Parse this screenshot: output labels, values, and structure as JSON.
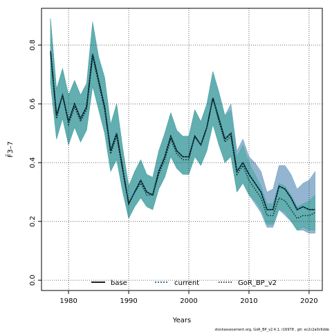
{
  "chart_data": {
    "type": "line",
    "xlabel": "Years",
    "ylabel": "F̄3–7",
    "xlim": [
      1975.5,
      2022.2
    ],
    "ylim": [
      -0.035,
      0.925
    ],
    "xticks": [
      "1980",
      "1990",
      "2000",
      "2010",
      "2020"
    ],
    "yticks": [
      "0.0",
      "0.2",
      "0.4",
      "0.6",
      "0.8"
    ],
    "grid": true,
    "legend_position": "bottom",
    "footer": "stockassessment.org, GoR_BP_v2.4.1, r16978 , git: ec2c2a0c6dde",
    "x": [
      1977,
      1978,
      1979,
      1980,
      1981,
      1982,
      1983,
      1984,
      1985,
      1986,
      1987,
      1988,
      1989,
      1990,
      1991,
      1992,
      1993,
      1994,
      1995,
      1996,
      1997,
      1998,
      1999,
      2000,
      2001,
      2002,
      2003,
      2004,
      2005,
      2006,
      2007,
      2008,
      2009,
      2010,
      2011,
      2012,
      2013,
      2014,
      2015,
      2016,
      2017,
      2018,
      2019,
      2020,
      2021
    ],
    "series": [
      {
        "name": "base",
        "color": "#000000",
        "dash": "solid",
        "band_color": "#8aa3c0",
        "values": [
          0.78,
          0.56,
          0.63,
          0.54,
          0.6,
          0.55,
          0.59,
          0.77,
          0.68,
          0.59,
          0.44,
          0.5,
          0.38,
          0.26,
          0.3,
          0.34,
          0.3,
          0.29,
          0.37,
          0.42,
          0.49,
          0.44,
          0.42,
          0.42,
          0.49,
          0.46,
          0.52,
          0.62,
          0.55,
          0.48,
          0.5,
          0.37,
          0.4,
          0.36,
          0.33,
          0.3,
          0.24,
          0.24,
          0.32,
          0.31,
          0.28,
          0.24,
          0.25,
          0.24,
          0.24
        ],
        "lower": [
          0.67,
          0.48,
          0.55,
          0.46,
          0.52,
          0.47,
          0.51,
          0.66,
          0.58,
          0.5,
          0.37,
          0.41,
          0.3,
          0.21,
          0.25,
          0.28,
          0.25,
          0.24,
          0.31,
          0.35,
          0.42,
          0.38,
          0.36,
          0.36,
          0.42,
          0.39,
          0.44,
          0.53,
          0.46,
          0.4,
          0.42,
          0.3,
          0.33,
          0.29,
          0.26,
          0.23,
          0.18,
          0.18,
          0.24,
          0.22,
          0.2,
          0.17,
          0.17,
          0.16,
          0.16
        ],
        "upper": [
          0.89,
          0.65,
          0.72,
          0.63,
          0.68,
          0.63,
          0.67,
          0.88,
          0.76,
          0.69,
          0.53,
          0.6,
          0.45,
          0.32,
          0.37,
          0.41,
          0.36,
          0.35,
          0.44,
          0.5,
          0.57,
          0.51,
          0.49,
          0.49,
          0.58,
          0.54,
          0.6,
          0.71,
          0.64,
          0.56,
          0.6,
          0.44,
          0.48,
          0.42,
          0.4,
          0.37,
          0.3,
          0.31,
          0.39,
          0.39,
          0.36,
          0.31,
          0.33,
          0.34,
          0.37
        ]
      },
      {
        "name": "current",
        "color": "#1a5a8a",
        "dash": "2,2",
        "band_color": "#6fa3c8",
        "values": [
          0.78,
          0.56,
          0.63,
          0.54,
          0.6,
          0.55,
          0.59,
          0.77,
          0.68,
          0.59,
          0.44,
          0.5,
          0.38,
          0.26,
          0.3,
          0.34,
          0.3,
          0.29,
          0.37,
          0.42,
          0.49,
          0.44,
          0.42,
          0.42,
          0.49,
          0.46,
          0.52,
          0.62,
          0.55,
          0.48,
          0.5,
          0.37,
          0.4,
          0.36,
          0.33,
          0.3,
          0.24,
          0.24,
          0.32,
          0.31,
          0.28,
          0.24,
          0.25,
          0.24,
          0.24
        ],
        "lower": [
          0.67,
          0.48,
          0.55,
          0.46,
          0.52,
          0.47,
          0.51,
          0.66,
          0.58,
          0.5,
          0.37,
          0.41,
          0.3,
          0.21,
          0.25,
          0.28,
          0.25,
          0.24,
          0.31,
          0.35,
          0.42,
          0.38,
          0.36,
          0.36,
          0.42,
          0.39,
          0.44,
          0.53,
          0.46,
          0.4,
          0.42,
          0.3,
          0.33,
          0.29,
          0.26,
          0.23,
          0.18,
          0.18,
          0.24,
          0.22,
          0.2,
          0.17,
          0.17,
          0.16,
          0.16
        ],
        "upper": [
          0.89,
          0.65,
          0.72,
          0.63,
          0.68,
          0.63,
          0.67,
          0.88,
          0.76,
          0.69,
          0.53,
          0.6,
          0.45,
          0.32,
          0.37,
          0.41,
          0.36,
          0.35,
          0.44,
          0.5,
          0.57,
          0.51,
          0.49,
          0.49,
          0.58,
          0.54,
          0.6,
          0.71,
          0.64,
          0.56,
          0.6,
          0.44,
          0.48,
          0.42,
          0.4,
          0.37,
          0.3,
          0.31,
          0.39,
          0.39,
          0.36,
          0.31,
          0.33,
          0.34,
          0.37
        ]
      },
      {
        "name": "GoR_BP_v2",
        "color": "#0a2f20",
        "dash": "1.5,2",
        "band_color": "#3aa898",
        "values": [
          0.77,
          0.55,
          0.63,
          0.53,
          0.59,
          0.54,
          0.58,
          0.76,
          0.67,
          0.58,
          0.43,
          0.49,
          0.37,
          0.26,
          0.3,
          0.33,
          0.29,
          0.29,
          0.36,
          0.41,
          0.48,
          0.43,
          0.41,
          0.41,
          0.49,
          0.46,
          0.52,
          0.62,
          0.54,
          0.47,
          0.49,
          0.36,
          0.39,
          0.34,
          0.31,
          0.28,
          0.22,
          0.22,
          0.28,
          0.27,
          0.24,
          0.21,
          0.22,
          0.22,
          0.23
        ],
        "lower": [
          0.67,
          0.48,
          0.55,
          0.46,
          0.52,
          0.47,
          0.51,
          0.66,
          0.58,
          0.5,
          0.37,
          0.41,
          0.3,
          0.21,
          0.25,
          0.28,
          0.25,
          0.24,
          0.31,
          0.35,
          0.42,
          0.38,
          0.36,
          0.36,
          0.42,
          0.39,
          0.44,
          0.53,
          0.46,
          0.4,
          0.42,
          0.3,
          0.33,
          0.29,
          0.27,
          0.24,
          0.19,
          0.19,
          0.24,
          0.23,
          0.2,
          0.17,
          0.18,
          0.17,
          0.17
        ],
        "upper": [
          0.89,
          0.65,
          0.72,
          0.63,
          0.68,
          0.63,
          0.67,
          0.87,
          0.76,
          0.69,
          0.53,
          0.6,
          0.45,
          0.32,
          0.37,
          0.41,
          0.36,
          0.35,
          0.44,
          0.5,
          0.57,
          0.51,
          0.49,
          0.49,
          0.58,
          0.54,
          0.6,
          0.71,
          0.64,
          0.56,
          0.58,
          0.42,
          0.46,
          0.4,
          0.36,
          0.32,
          0.26,
          0.26,
          0.33,
          0.32,
          0.29,
          0.25,
          0.26,
          0.27,
          0.29
        ]
      }
    ]
  }
}
